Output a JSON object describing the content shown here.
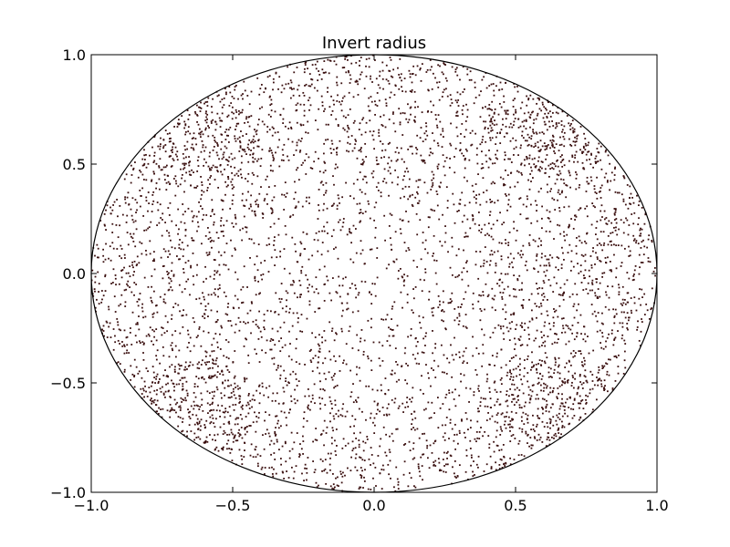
{
  "chart_data": {
    "type": "scatter",
    "title": "Invert radius",
    "xlabel": "",
    "ylabel": "",
    "xlim": [
      -1.0,
      1.0
    ],
    "ylim": [
      -1.0,
      1.0
    ],
    "grid": false,
    "x_ticks": [
      -1.0,
      -0.5,
      0.0,
      0.5,
      1.0
    ],
    "x_tick_labels": [
      "−1.0",
      "−0.5",
      "0.0",
      "0.5",
      "1.0"
    ],
    "y_ticks": [
      -1.0,
      -0.5,
      0.0,
      0.5,
      1.0
    ],
    "y_tick_labels": [
      "−1.0",
      "−0.5",
      "0.0",
      "0.5",
      "1.0"
    ],
    "boundary": {
      "shape": "circle",
      "center": [
        0.0,
        0.0
      ],
      "radius": 1.0
    },
    "point_color": "#3a0f0f",
    "series": [
      {
        "points": [
          [
            0.12,
            0.34
          ],
          [
            -0.45,
            0.21
          ],
          [
            0.67,
            -0.12
          ],
          [
            -0.23,
            -0.56
          ],
          [
            0.05,
            0.88
          ],
          [
            -0.78,
            0.33
          ],
          [
            0.41,
            0.62
          ],
          [
            -0.11,
            -0.91
          ],
          [
            0.83,
            0.24
          ],
          [
            -0.62,
            -0.48
          ],
          [
            0.29,
            -0.37
          ],
          [
            -0.35,
            0.74
          ],
          [
            0.58,
            -0.66
          ],
          [
            -0.88,
            -0.15
          ],
          [
            0.17,
            -0.08
          ],
          [
            -0.04,
            0.52
          ],
          [
            0.72,
            0.51
          ],
          [
            -0.57,
            0.63
          ],
          [
            0.46,
            -0.84
          ],
          [
            -0.69,
            -0.61
          ],
          [
            0.91,
            -0.18
          ],
          [
            -0.26,
            0.09
          ],
          [
            0.03,
            -0.33
          ],
          [
            0.61,
            0.57
          ],
          [
            -0.6,
            0.56
          ],
          [
            0.55,
            -0.59
          ],
          [
            -0.58,
            -0.6
          ],
          [
            0.33,
            0.91
          ],
          [
            -0.41,
            -0.88
          ],
          [
            0.95,
            0.05
          ]
        ]
      }
    ]
  }
}
